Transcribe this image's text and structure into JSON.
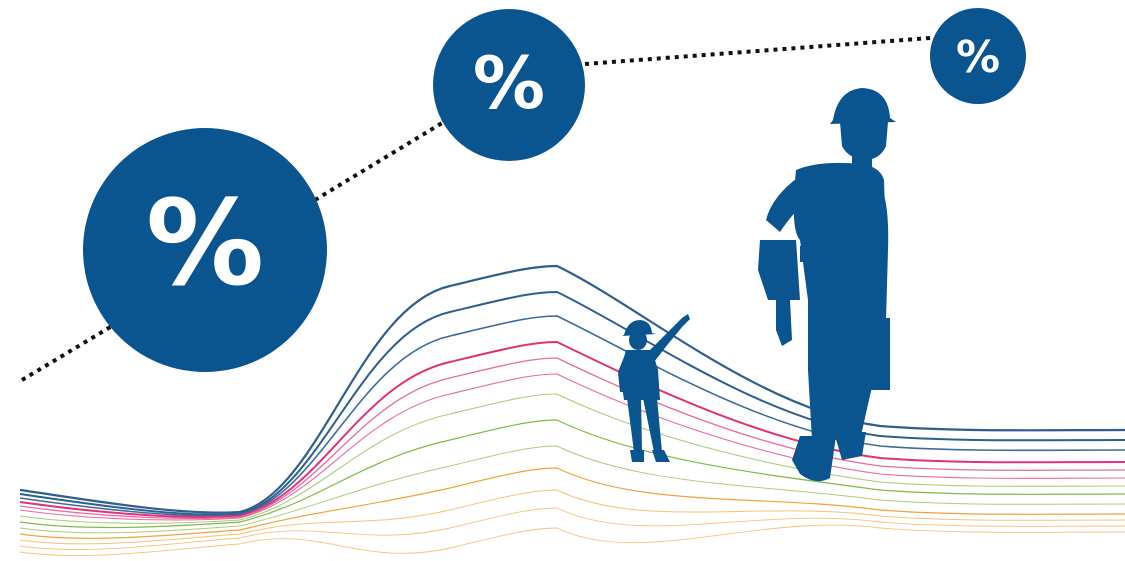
{
  "colors": {
    "background": "#ffffff",
    "primary_blue": "#0a5490",
    "line_blue_dark": "#2f5f8e",
    "line_blue_mid": "#3c6d9a",
    "line_pink": "#e0337a",
    "line_pink_light": "#ea6aa0",
    "line_green": "#7fba49",
    "line_green_light": "#a9cf7a",
    "line_orange": "#f2a23a",
    "line_orange_light": "#f7c27a",
    "dotted_line": "#111111",
    "percent_text": "#ffffff"
  },
  "badges": {
    "large": "%",
    "medium": "%",
    "small": "%"
  },
  "icons": {
    "small_worker": "worker-pointing-silhouette",
    "large_worker": "worker-with-toolbelt-silhouette"
  }
}
